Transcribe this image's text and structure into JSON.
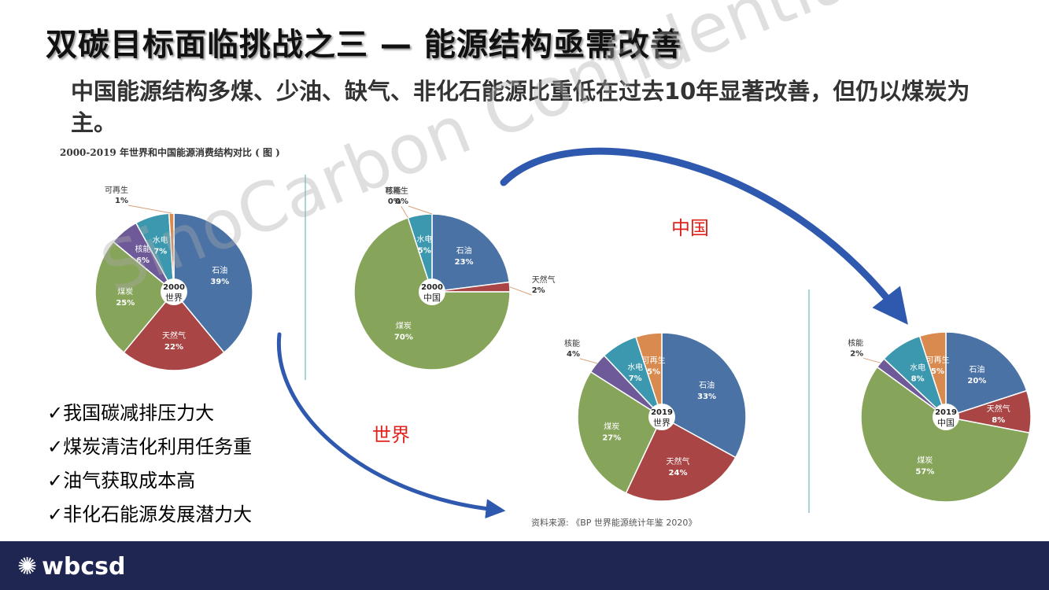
{
  "slide": {
    "title": "双碳目标面临挑战之三 — 能源结构亟需改善",
    "subtitle": "中国能源结构多煤、少油、缺气、非化石能源比重低在过去10年显著改善，但仍以煤炭为主。",
    "chart_caption": "2000-2019 年世界和中国能源消费结构对比 ( 图 )",
    "source": "资料来源: 《BP 世界能源统计年鉴 2020》",
    "bullets": [
      "✓我国碳减排压力大",
      "✓煤炭清洁化利用任务重",
      "✓油气获取成本高",
      "✓非化石能源发展潜力大"
    ],
    "label_china": "中国",
    "label_world": "世界",
    "watermark": "SinoCarbon Confidential",
    "footer_logo": "wbcsd"
  },
  "colors": {
    "石油": "#4A72A5",
    "天然气": "#A94545",
    "煤炭": "#86A45A",
    "核能": "#6E5A98",
    "水电": "#3B98AE",
    "可再生": "#D98A4E",
    "arrow": "#2F59AF",
    "footer": "#202652"
  },
  "chart_data": [
    {
      "type": "pie",
      "center_label": [
        "2000",
        "世界"
      ],
      "slices": [
        {
          "label": "石油",
          "value": 39,
          "text": "39%"
        },
        {
          "label": "天然气",
          "value": 22,
          "text": "22%"
        },
        {
          "label": "煤炭",
          "value": 25,
          "text": "25%"
        },
        {
          "label": "核能",
          "value": 6,
          "text": "6%"
        },
        {
          "label": "水电",
          "value": 7,
          "text": "7%"
        },
        {
          "label": "可再生",
          "value": 1,
          "text": "1%"
        }
      ]
    },
    {
      "type": "pie",
      "center_label": [
        "2000",
        "中国"
      ],
      "slices": [
        {
          "label": "石油",
          "value": 23,
          "text": "23%"
        },
        {
          "label": "天然气",
          "value": 2,
          "text": "2%"
        },
        {
          "label": "煤炭",
          "value": 70,
          "text": "70%"
        },
        {
          "label": "核能",
          "value": 0,
          "text": "0%"
        },
        {
          "label": "水电",
          "value": 5,
          "text": "5%"
        },
        {
          "label": "可再生",
          "value": 0,
          "text": "0%"
        }
      ]
    },
    {
      "type": "pie",
      "center_label": [
        "2019",
        "世界"
      ],
      "slices": [
        {
          "label": "石油",
          "value": 33,
          "text": "33%"
        },
        {
          "label": "天然气",
          "value": 24,
          "text": "24%"
        },
        {
          "label": "煤炭",
          "value": 27,
          "text": "27%"
        },
        {
          "label": "核能",
          "value": 4,
          "text": "4%"
        },
        {
          "label": "水电",
          "value": 7,
          "text": "7%"
        },
        {
          "label": "可再生",
          "value": 5,
          "text": "5%"
        }
      ]
    },
    {
      "type": "pie",
      "center_label": [
        "2019",
        "中国"
      ],
      "slices": [
        {
          "label": "石油",
          "value": 20,
          "text": "20%"
        },
        {
          "label": "天然气",
          "value": 8,
          "text": "8%"
        },
        {
          "label": "煤炭",
          "value": 57,
          "text": "57%"
        },
        {
          "label": "核能",
          "value": 2,
          "text": "2%"
        },
        {
          "label": "水电",
          "value": 8,
          "text": "8%"
        },
        {
          "label": "可再生",
          "value": 5,
          "text": "5%"
        }
      ]
    }
  ]
}
